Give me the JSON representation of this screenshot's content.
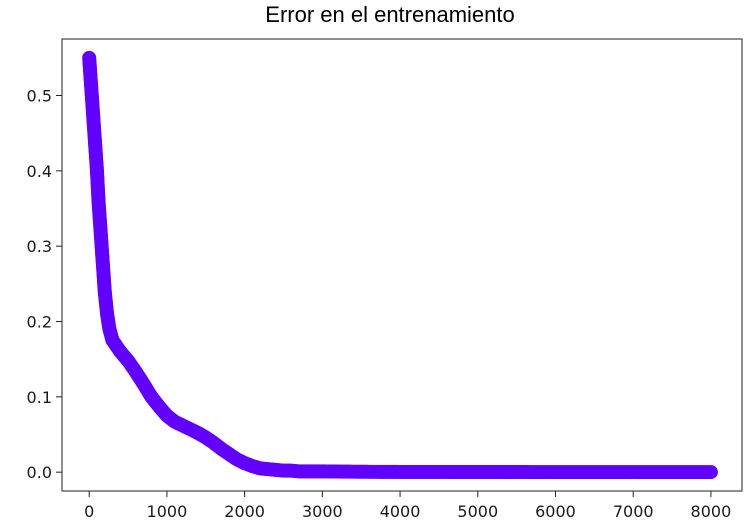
{
  "chart_data": {
    "type": "scatter",
    "title": "Error en el entrenamiento",
    "xlabel": "",
    "ylabel": "",
    "xlim": [
      -350,
      8400
    ],
    "ylim": [
      -0.025,
      0.575
    ],
    "x_ticks": [
      0,
      1000,
      2000,
      3000,
      4000,
      5000,
      6000,
      7000,
      8000
    ],
    "x_tick_labels": [
      "0",
      "1000",
      "2000",
      "3000",
      "4000",
      "5000",
      "6000",
      "7000",
      "8000"
    ],
    "y_ticks": [
      0.0,
      0.1,
      0.2,
      0.3,
      0.4,
      0.5
    ],
    "y_tick_labels": [
      "0.0",
      "0.1",
      "0.2",
      "0.3",
      "0.4",
      "0.5"
    ],
    "grid": false,
    "legend": "none",
    "series": [
      {
        "color": "#6200ff",
        "points": [
          [
            0,
            0.55
          ],
          [
            20,
            0.52
          ],
          [
            40,
            0.49
          ],
          [
            60,
            0.46
          ],
          [
            80,
            0.43
          ],
          [
            100,
            0.4
          ],
          [
            120,
            0.36
          ],
          [
            140,
            0.33
          ],
          [
            160,
            0.3
          ],
          [
            180,
            0.27
          ],
          [
            200,
            0.24
          ],
          [
            230,
            0.21
          ],
          [
            260,
            0.19
          ],
          [
            300,
            0.175
          ],
          [
            400,
            0.16
          ],
          [
            500,
            0.148
          ],
          [
            600,
            0.133
          ],
          [
            700,
            0.117
          ],
          [
            800,
            0.1
          ],
          [
            900,
            0.087
          ],
          [
            1000,
            0.075
          ],
          [
            1100,
            0.067
          ],
          [
            1200,
            0.062
          ],
          [
            1300,
            0.057
          ],
          [
            1400,
            0.052
          ],
          [
            1500,
            0.046
          ],
          [
            1600,
            0.039
          ],
          [
            1700,
            0.031
          ],
          [
            1800,
            0.024
          ],
          [
            1900,
            0.017
          ],
          [
            2000,
            0.012
          ],
          [
            2100,
            0.008
          ],
          [
            2200,
            0.005
          ],
          [
            2300,
            0.004
          ],
          [
            2400,
            0.003
          ],
          [
            2500,
            0.002
          ],
          [
            2600,
            0.002
          ],
          [
            2700,
            0.001
          ],
          [
            2800,
            0.001
          ],
          [
            3000,
            0.001
          ],
          [
            3500,
            0.0005
          ],
          [
            4000,
            0.0003
          ],
          [
            5000,
            0.0002
          ],
          [
            6000,
            0.0001
          ],
          [
            7000,
            0.0001
          ],
          [
            8000,
            0.0001
          ]
        ]
      }
    ]
  }
}
